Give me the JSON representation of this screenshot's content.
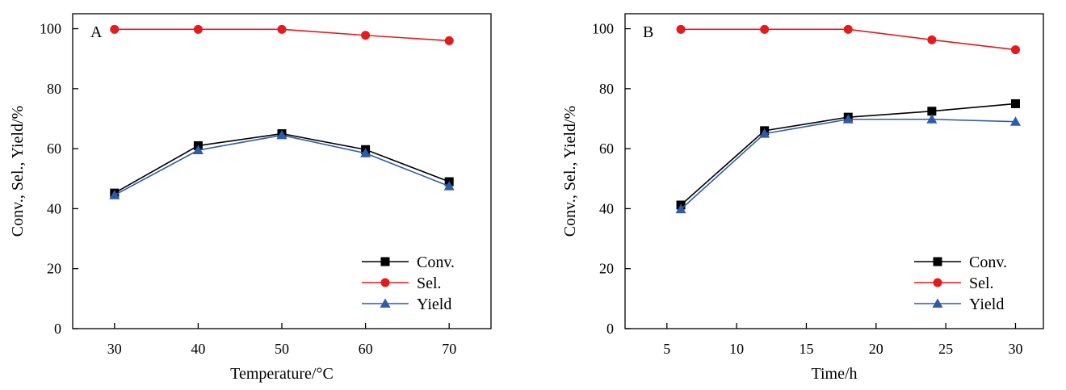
{
  "chart_data": [
    {
      "type": "line",
      "panel_label": "A",
      "xlabel": "Temperature/°C",
      "ylabel": "Conv., Sel., Yield/%",
      "x": [
        30,
        40,
        50,
        60,
        70
      ],
      "xlim": [
        25,
        75
      ],
      "ylim": [
        0,
        105
      ],
      "xticks": [
        30,
        40,
        50,
        60,
        70
      ],
      "yticks": [
        0,
        20,
        40,
        60,
        80,
        100
      ],
      "legend_position": "bottom-right",
      "grid": false,
      "series": [
        {
          "name": "Conv.",
          "marker": "square",
          "color": "#000000",
          "values": [
            45.2,
            61.0,
            65.0,
            59.7,
            49.0
          ]
        },
        {
          "name": "Sel.",
          "marker": "circle",
          "color": "#e41a1c",
          "values": [
            99.8,
            99.8,
            99.8,
            97.8,
            96.0
          ]
        },
        {
          "name": "Yield",
          "marker": "triangle",
          "color": "#2e5ca8",
          "values": [
            44.5,
            59.5,
            64.5,
            58.5,
            47.5
          ]
        }
      ]
    },
    {
      "type": "line",
      "panel_label": "B",
      "xlabel": "Time/h",
      "ylabel": "Conv., Sel., Yield/%",
      "x": [
        6,
        12,
        18,
        24,
        30
      ],
      "xlim": [
        2,
        32
      ],
      "ylim": [
        0,
        105
      ],
      "xticks": [
        5,
        10,
        15,
        20,
        25,
        30
      ],
      "yticks": [
        0,
        20,
        40,
        60,
        80,
        100
      ],
      "legend_position": "bottom-right",
      "grid": false,
      "series": [
        {
          "name": "Conv.",
          "marker": "square",
          "color": "#000000",
          "values": [
            41.2,
            66.0,
            70.5,
            72.5,
            75.0
          ]
        },
        {
          "name": "Sel.",
          "marker": "circle",
          "color": "#e41a1c",
          "values": [
            99.8,
            99.8,
            99.8,
            96.3,
            93.0
          ]
        },
        {
          "name": "Yield",
          "marker": "triangle",
          "color": "#2e5ca8",
          "values": [
            39.8,
            65.0,
            69.8,
            69.8,
            69.0
          ]
        }
      ]
    }
  ]
}
